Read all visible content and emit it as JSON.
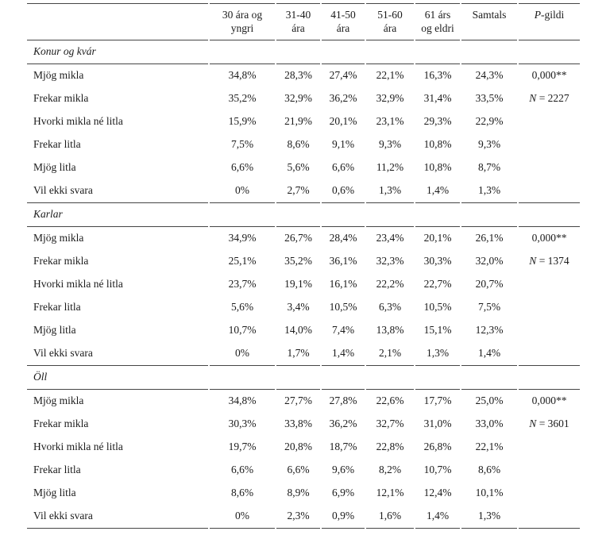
{
  "table": {
    "header": {
      "row_label_column": "",
      "age_columns": [
        {
          "line1": "30 ára og",
          "line2": "yngri"
        },
        {
          "line1": "31-40",
          "line2": "ára"
        },
        {
          "line1": "41-50",
          "line2": "ára"
        },
        {
          "line1": "51-60",
          "line2": "ára"
        },
        {
          "line1": "61 árs",
          "line2": "og eldri"
        }
      ],
      "total_column": "Samtals",
      "p_column": {
        "italic": "P",
        "rest": "-gildi"
      }
    },
    "sections": [
      {
        "title": "Konur og kvár",
        "rows": [
          {
            "label": "Mjög mikla",
            "values": [
              "34,8%",
              "28,3%",
              "27,4%",
              "22,1%",
              "16,3%",
              "24,3%"
            ],
            "stat": {
              "text": "0,000**"
            }
          },
          {
            "label": "Frekar mikla",
            "values": [
              "35,2%",
              "32,9%",
              "36,2%",
              "32,9%",
              "31,4%",
              "33,5%"
            ],
            "stat": {
              "italic": "N",
              "rest": " = 2227"
            }
          },
          {
            "label": "Hvorki mikla né litla",
            "values": [
              "15,9%",
              "21,9%",
              "20,1%",
              "23,1%",
              "29,3%",
              "22,9%"
            ]
          },
          {
            "label": "Frekar litla",
            "values": [
              "7,5%",
              "8,6%",
              "9,1%",
              "9,3%",
              "10,8%",
              "9,3%"
            ]
          },
          {
            "label": "Mjög litla",
            "values": [
              "6,6%",
              "5,6%",
              "6,6%",
              "11,2%",
              "10,8%",
              "8,7%"
            ]
          },
          {
            "label": "Vil ekki svara",
            "values": [
              "0%",
              "2,7%",
              "0,6%",
              "1,3%",
              "1,4%",
              "1,3%"
            ]
          }
        ]
      },
      {
        "title": "Karlar",
        "rows": [
          {
            "label": "Mjög mikla",
            "values": [
              "34,9%",
              "26,7%",
              "28,4%",
              "23,4%",
              "20,1%",
              "26,1%"
            ],
            "stat": {
              "text": "0,000**"
            }
          },
          {
            "label": "Frekar mikla",
            "values": [
              "25,1%",
              "35,2%",
              "36,1%",
              "32,3%",
              "30,3%",
              "32,0%"
            ],
            "stat": {
              "italic": "N",
              "rest": " = 1374"
            }
          },
          {
            "label": "Hvorki mikla né litla",
            "values": [
              "23,7%",
              "19,1%",
              "16,1%",
              "22,2%",
              "22,7%",
              "20,7%"
            ]
          },
          {
            "label": "Frekar litla",
            "values": [
              "5,6%",
              "3,4%",
              "10,5%",
              "6,3%",
              "10,5%",
              "7,5%"
            ]
          },
          {
            "label": "Mjög litla",
            "values": [
              "10,7%",
              "14,0%",
              "7,4%",
              "13,8%",
              "15,1%",
              "12,3%"
            ]
          },
          {
            "label": "Vil ekki svara",
            "values": [
              "0%",
              "1,7%",
              "1,4%",
              "2,1%",
              "1,3%",
              "1,4%"
            ]
          }
        ]
      },
      {
        "title": "Öll",
        "rows": [
          {
            "label": "Mjög mikla",
            "values": [
              "34,8%",
              "27,7%",
              "27,8%",
              "22,6%",
              "17,7%",
              "25,0%"
            ],
            "stat": {
              "text": "0,000**"
            }
          },
          {
            "label": "Frekar mikla",
            "values": [
              "30,3%",
              "33,8%",
              "36,2%",
              "32,7%",
              "31,0%",
              "33,0%"
            ],
            "stat": {
              "italic": "N",
              "rest": " = 3601"
            }
          },
          {
            "label": "Hvorki mikla né litla",
            "values": [
              "19,7%",
              "20,8%",
              "18,7%",
              "22,8%",
              "26,8%",
              "22,1%"
            ]
          },
          {
            "label": "Frekar litla",
            "values": [
              "6,6%",
              "6,6%",
              "9,6%",
              "8,2%",
              "10,7%",
              "8,6%"
            ]
          },
          {
            "label": "Mjög litla",
            "values": [
              "8,6%",
              "8,9%",
              "6,9%",
              "12,1%",
              "12,4%",
              "10,1%"
            ]
          },
          {
            "label": "Vil ekki svara",
            "values": [
              "0%",
              "2,3%",
              "0,9%",
              "1,6%",
              "1,4%",
              "1,3%"
            ]
          }
        ]
      }
    ],
    "line_color": "#454545"
  }
}
